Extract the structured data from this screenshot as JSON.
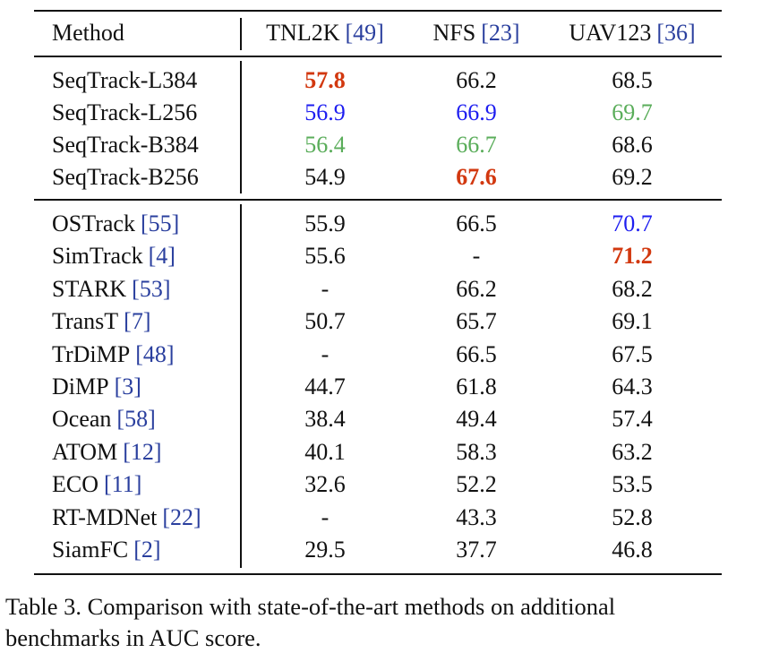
{
  "table": {
    "columns": [
      {
        "name": "Method"
      },
      {
        "name": "TNL2K",
        "cite": "[49]"
      },
      {
        "name": "NFS",
        "cite": "[23]"
      },
      {
        "name": "UAV123",
        "cite": "[36]"
      }
    ],
    "groups": [
      [
        {
          "method": "SeqTrack-L384",
          "cells": [
            {
              "text": "57.8",
              "style": "first"
            },
            {
              "text": "66.2"
            },
            {
              "text": "68.5"
            }
          ]
        },
        {
          "method": "SeqTrack-L256",
          "cells": [
            {
              "text": "56.9",
              "style": "second"
            },
            {
              "text": "66.9",
              "style": "second"
            },
            {
              "text": "69.7",
              "style": "third"
            }
          ]
        },
        {
          "method": "SeqTrack-B384",
          "cells": [
            {
              "text": "56.4",
              "style": "third"
            },
            {
              "text": "66.7",
              "style": "third"
            },
            {
              "text": "68.6"
            }
          ]
        },
        {
          "method": "SeqTrack-B256",
          "cells": [
            {
              "text": "54.9"
            },
            {
              "text": "67.6",
              "style": "first"
            },
            {
              "text": "69.2"
            }
          ]
        }
      ],
      [
        {
          "method": "OSTrack",
          "cite": "[55]",
          "cells": [
            {
              "text": "55.9"
            },
            {
              "text": "66.5"
            },
            {
              "text": "70.7",
              "style": "second"
            }
          ]
        },
        {
          "method": "SimTrack",
          "cite": "[4]",
          "cells": [
            {
              "text": "55.6"
            },
            {
              "text": "-"
            },
            {
              "text": "71.2",
              "style": "first"
            }
          ]
        },
        {
          "method": "STARK",
          "cite": "[53]",
          "cells": [
            {
              "text": "-"
            },
            {
              "text": "66.2"
            },
            {
              "text": "68.2"
            }
          ]
        },
        {
          "method": "TransT",
          "cite": "[7]",
          "cells": [
            {
              "text": "50.7"
            },
            {
              "text": "65.7"
            },
            {
              "text": "69.1"
            }
          ]
        },
        {
          "method": "TrDiMP",
          "cite": "[48]",
          "cells": [
            {
              "text": "-"
            },
            {
              "text": "66.5"
            },
            {
              "text": "67.5"
            }
          ]
        },
        {
          "method": "DiMP",
          "cite": "[3]",
          "cells": [
            {
              "text": "44.7"
            },
            {
              "text": "61.8"
            },
            {
              "text": "64.3"
            }
          ]
        },
        {
          "method": "Ocean",
          "cite": "[58]",
          "cells": [
            {
              "text": "38.4"
            },
            {
              "text": "49.4"
            },
            {
              "text": "57.4"
            }
          ]
        },
        {
          "method": "ATOM",
          "cite": "[12]",
          "cells": [
            {
              "text": "40.1"
            },
            {
              "text": "58.3"
            },
            {
              "text": "63.2"
            }
          ]
        },
        {
          "method": "ECO",
          "cite": "[11]",
          "cells": [
            {
              "text": "32.6"
            },
            {
              "text": "52.2"
            },
            {
              "text": "53.5"
            }
          ]
        },
        {
          "method": "RT-MDNet",
          "cite": "[22]",
          "cells": [
            {
              "text": "-"
            },
            {
              "text": "43.3"
            },
            {
              "text": "52.8"
            }
          ]
        },
        {
          "method": "SiamFC",
          "cite": "[2]",
          "cells": [
            {
              "text": "29.5"
            },
            {
              "text": "37.7"
            },
            {
              "text": "46.8"
            }
          ]
        }
      ]
    ]
  },
  "caption": {
    "lines": [
      "Table 3.  Comparison with state-of-the-art methods on additional",
      "benchmarks in AUC score."
    ]
  }
}
